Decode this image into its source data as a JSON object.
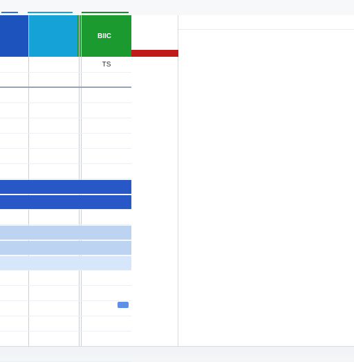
{
  "topbar": {
    "items": [
      "",
      "",
      "",
      "",
      ""
    ]
  },
  "left_table": {
    "headers": [
      "",
      "",
      "BIIC"
    ],
    "rows": [
      {
        "c1": "",
        "c2": "",
        "c3": "TS"
      },
      {
        "c1": "",
        "c2": "",
        "c3": ""
      },
      {
        "c1": "",
        "c2": "",
        "c3": ""
      },
      {
        "c1": "",
        "c2": "",
        "c3": ""
      },
      {
        "c1": "",
        "c2": "",
        "c3": ""
      },
      {
        "c1": "",
        "c2": "",
        "c3": ""
      },
      {
        "c1": "",
        "c2": "",
        "c3": ""
      },
      {
        "c1": "",
        "c2": "",
        "c3": ""
      },
      {
        "c1": "",
        "c2": "",
        "c3": ""
      },
      {
        "c1": "",
        "c2": "",
        "c3": ""
      },
      {
        "c1": "",
        "c2": "",
        "c3": ""
      },
      {
        "c1": "",
        "c2": "",
        "c3": ""
      },
      {
        "c1": "",
        "c2": "",
        "c3": ""
      },
      {
        "c1": "",
        "c2": "",
        "c3": ""
      },
      {
        "c1": "",
        "c2": "",
        "c3": ""
      },
      {
        "c1": "",
        "c2": "",
        "c3": ""
      },
      {
        "c1": "",
        "c2": "",
        "c3": ""
      },
      {
        "c1": "",
        "c2": "",
        "c3": ""
      },
      {
        "c1": "",
        "c2": "",
        "c3": ""
      },
      {
        "c1": "",
        "c2": "",
        "c3": ""
      }
    ]
  },
  "right_table": {
    "headers": [
      "",
      "",
      ""
    ],
    "rows": [
      {
        "a": "",
        "b": "",
        "c": ""
      },
      {
        "a": "",
        "b": "",
        "c": ""
      },
      {
        "a": "",
        "b": "",
        "c": ""
      },
      {
        "a": "",
        "b": "",
        "c": ""
      },
      {
        "a": "",
        "b": "",
        "c": ""
      },
      {
        "a": "",
        "b": "",
        "c": ""
      },
      {
        "a": "",
        "b": "",
        "c": ""
      },
      {
        "a": "",
        "b": "",
        "c": ""
      },
      {
        "a": "",
        "b": "",
        "c": ""
      },
      {
        "a": "",
        "b": "",
        "c": ""
      },
      {
        "a": "",
        "b": "",
        "c": ""
      },
      {
        "a": "",
        "b": "",
        "c": ""
      },
      {
        "a": "",
        "b": "",
        "c": ""
      },
      {
        "a": "",
        "b": "",
        "c": ""
      },
      {
        "a": "",
        "b": "",
        "c": ""
      },
      {
        "a": "",
        "b": "",
        "c": ""
      },
      {
        "a": "",
        "b": "",
        "c": ""
      },
      {
        "a": "",
        "b": "",
        "c": ""
      },
      {
        "a": "",
        "b": "",
        "c": ""
      },
      {
        "a": "",
        "b": "",
        "c": ""
      },
      {
        "a": "",
        "b": "",
        "c": ""
      }
    ]
  },
  "colors": {
    "blue_header": "#1c53bc",
    "cyan_header": "#15a2d6",
    "green_header": "#1b9b2f",
    "selected_row": "#2857c7",
    "light_selection": "#bcd4f2",
    "palest_selection": "#d7e7fb",
    "red_marker": "#c11a1a"
  }
}
